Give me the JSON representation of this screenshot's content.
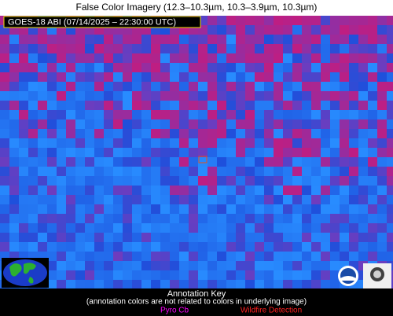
{
  "header": {
    "title": "False Color Imagery (12.3–10.3µm, 10.3–3.9µm, 10.3µm)"
  },
  "image": {
    "label": "GOES-18 ABI (07/14/2025 – 22:30:00 UTC)"
  },
  "key": {
    "title": "Annotation Key",
    "subtitle": "(annotation colors are not related to colors in underlying image)",
    "items": [
      "Pyro Cb",
      "Wildfire Detection"
    ]
  }
}
